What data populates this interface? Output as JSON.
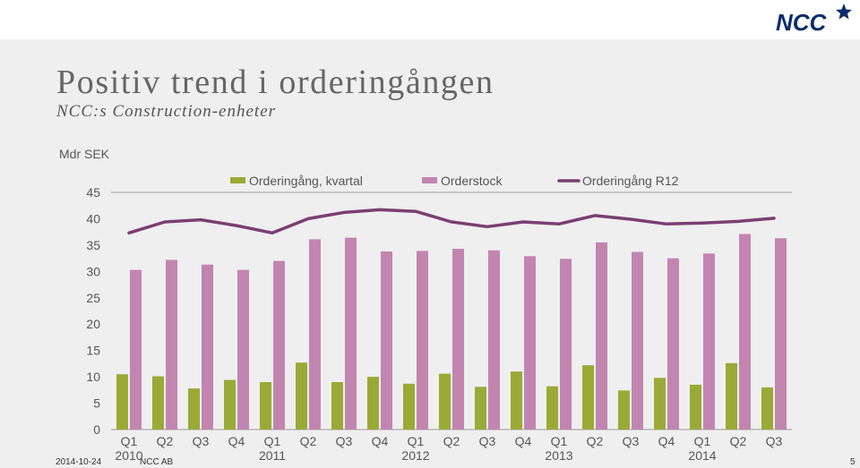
{
  "slide": {
    "title": "Positiv trend i orderingången",
    "subtitle": "NCC:s Construction-enheter",
    "unit_label": "Mdr SEK",
    "logo_text": "NCC"
  },
  "footer": {
    "date": "2014-10-24",
    "company": "NCC AB",
    "page": "5"
  },
  "colors": {
    "orderingang_kvartal": "#9aaa36",
    "orderstock": "#c285b0",
    "orderingang_r12": "#7b3f72",
    "logo": "#0b2d6b"
  },
  "chart_data": {
    "type": "bar",
    "title": "",
    "xlabel": "",
    "ylabel": "Mdr SEK",
    "ylim": [
      0,
      45
    ],
    "yticks": [
      0,
      5,
      10,
      15,
      20,
      25,
      30,
      35,
      40,
      45
    ],
    "grid": false,
    "legend_position": "top",
    "categories": [
      "Q1",
      "Q2",
      "Q3",
      "Q4",
      "Q1",
      "Q2",
      "Q3",
      "Q4",
      "Q1",
      "Q2",
      "Q3",
      "Q4",
      "Q1",
      "Q2",
      "Q3",
      "Q4",
      "Q1",
      "Q2",
      "Q3"
    ],
    "year_groups": [
      {
        "label": "2010",
        "start": 0
      },
      {
        "label": "2011",
        "start": 4
      },
      {
        "label": "2012",
        "start": 8
      },
      {
        "label": "2013",
        "start": 12
      },
      {
        "label": "2014",
        "start": 16
      }
    ],
    "series": [
      {
        "name": "Orderingång, kvartal",
        "kind": "bar",
        "values": [
          10.5,
          10.1,
          7.8,
          9.4,
          9.0,
          12.7,
          9.0,
          10.0,
          8.7,
          10.6,
          8.1,
          11.0,
          8.2,
          12.2,
          7.4,
          9.8,
          8.5,
          12.6,
          8.0
        ]
      },
      {
        "name": "Orderstock",
        "kind": "bar",
        "values": [
          30.3,
          32.2,
          31.3,
          30.3,
          32.0,
          36.1,
          36.4,
          33.8,
          33.9,
          34.3,
          34.0,
          32.9,
          32.4,
          35.5,
          33.7,
          32.5,
          33.4,
          37.1,
          36.3
        ]
      },
      {
        "name": "Orderingång R12",
        "kind": "line",
        "values": [
          37.3,
          39.4,
          39.8,
          38.7,
          37.3,
          40.0,
          41.2,
          41.7,
          41.4,
          39.4,
          38.5,
          39.4,
          39.0,
          40.6,
          39.9,
          39.0,
          39.2,
          39.5,
          40.1
        ]
      }
    ]
  }
}
